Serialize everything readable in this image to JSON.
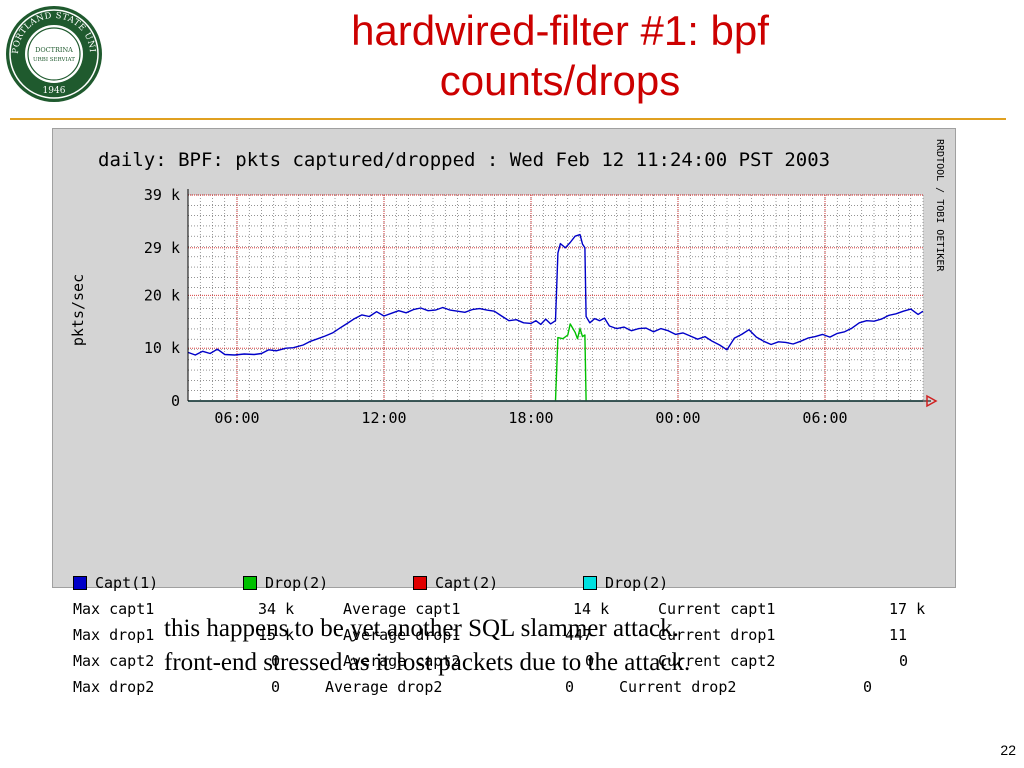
{
  "slide": {
    "title_line1": "hardwired-filter #1: bpf",
    "title_line2": "counts/drops",
    "caption_line1": "this happens to be yet another SQL slammer attack.",
    "caption_line2": "front-end stressed as it lost packets due to the attack.",
    "page_number": "22",
    "logo": {
      "top_text": "PORTLAND STATE UNIVERSITY",
      "inner_line1": "DOCTRINA",
      "inner_line2": "URBI SERVIAT",
      "year": "1946",
      "color": "#1f5a2e"
    }
  },
  "chart_data": {
    "type": "line",
    "title": "daily: BPF: pkts captured/dropped : Wed Feb 12 11:24:00 PST 2003",
    "ylabel": "pkts/sec",
    "watermark": "RRDTOOL / TOBI OETIKER",
    "ylim": [
      0,
      39000
    ],
    "xlim": [
      0,
      30
    ],
    "y_ticks": [
      {
        "value": 0,
        "label": "0"
      },
      {
        "value": 10000,
        "label": "10 k"
      },
      {
        "value": 20000,
        "label": "20 k"
      },
      {
        "value": 29000,
        "label": "29 k"
      },
      {
        "value": 39000,
        "label": "39 k"
      }
    ],
    "x_ticks": [
      {
        "value": 2,
        "label": "06:00"
      },
      {
        "value": 8,
        "label": "12:00"
      },
      {
        "value": 14,
        "label": "18:00"
      },
      {
        "value": 20,
        "label": "00:00"
      },
      {
        "value": 26,
        "label": "06:00"
      }
    ],
    "grid": true,
    "colors": {
      "background": "#ffffff",
      "frame": "#d4d4d4",
      "minor_grid": "#555555",
      "major_grid": "#d02020",
      "capt1": "#0000c8",
      "drop1": "#00c000",
      "capt2": "#e00000",
      "drop2": "#00e0e0",
      "arrow": "#d02020"
    },
    "series": [
      {
        "name": "Capt(1)",
        "color": "#0000c8",
        "points": [
          [
            0,
            9200
          ],
          [
            0.3,
            8700
          ],
          [
            0.6,
            9400
          ],
          [
            0.9,
            9000
          ],
          [
            1.2,
            9800
          ],
          [
            1.5,
            8800
          ],
          [
            1.9,
            8700
          ],
          [
            2.3,
            8900
          ],
          [
            2.7,
            8800
          ],
          [
            3.0,
            9000
          ],
          [
            3.3,
            9700
          ],
          [
            3.6,
            9500
          ],
          [
            4.0,
            10000
          ],
          [
            4.3,
            10100
          ],
          [
            4.7,
            10600
          ],
          [
            5.0,
            11300
          ],
          [
            5.3,
            11800
          ],
          [
            5.6,
            12300
          ],
          [
            5.9,
            12900
          ],
          [
            6.2,
            13800
          ],
          [
            6.5,
            14700
          ],
          [
            6.8,
            15600
          ],
          [
            7.1,
            16300
          ],
          [
            7.4,
            16000
          ],
          [
            7.7,
            16900
          ],
          [
            8.0,
            16100
          ],
          [
            8.3,
            16600
          ],
          [
            8.6,
            17100
          ],
          [
            8.9,
            16700
          ],
          [
            9.2,
            17300
          ],
          [
            9.5,
            17600
          ],
          [
            9.8,
            17100
          ],
          [
            10.1,
            17200
          ],
          [
            10.4,
            17700
          ],
          [
            10.7,
            17200
          ],
          [
            11.0,
            17000
          ],
          [
            11.3,
            16800
          ],
          [
            11.6,
            17300
          ],
          [
            11.9,
            17500
          ],
          [
            12.2,
            17200
          ],
          [
            12.5,
            17000
          ],
          [
            12.8,
            16100
          ],
          [
            13.1,
            15200
          ],
          [
            13.4,
            15400
          ],
          [
            13.7,
            14800
          ],
          [
            14.0,
            14700
          ],
          [
            14.2,
            15200
          ],
          [
            14.4,
            14500
          ],
          [
            14.6,
            15500
          ],
          [
            14.8,
            14600
          ],
          [
            15.0,
            15200
          ],
          [
            15.1,
            28000
          ],
          [
            15.2,
            29800
          ],
          [
            15.4,
            29000
          ],
          [
            15.6,
            30000
          ],
          [
            15.8,
            31200
          ],
          [
            16.0,
            31500
          ],
          [
            16.1,
            29700
          ],
          [
            16.2,
            29000
          ],
          [
            16.25,
            16000
          ],
          [
            16.4,
            14800
          ],
          [
            16.6,
            15600
          ],
          [
            16.8,
            15200
          ],
          [
            17.0,
            15700
          ],
          [
            17.2,
            14200
          ],
          [
            17.5,
            13700
          ],
          [
            17.8,
            14000
          ],
          [
            18.1,
            13300
          ],
          [
            18.4,
            13700
          ],
          [
            18.7,
            13800
          ],
          [
            19.0,
            13100
          ],
          [
            19.3,
            13700
          ],
          [
            19.6,
            13300
          ],
          [
            19.9,
            12600
          ],
          [
            20.2,
            12900
          ],
          [
            20.5,
            12300
          ],
          [
            20.8,
            11700
          ],
          [
            21.1,
            12200
          ],
          [
            21.4,
            11300
          ],
          [
            21.7,
            10600
          ],
          [
            22.0,
            9700
          ],
          [
            22.3,
            11900
          ],
          [
            22.6,
            12600
          ],
          [
            22.9,
            13500
          ],
          [
            23.2,
            12100
          ],
          [
            23.5,
            11300
          ],
          [
            23.8,
            10700
          ],
          [
            24.1,
            11200
          ],
          [
            24.4,
            11100
          ],
          [
            24.7,
            10800
          ],
          [
            25.0,
            11300
          ],
          [
            25.3,
            11900
          ],
          [
            25.6,
            12200
          ],
          [
            25.9,
            12600
          ],
          [
            26.2,
            12100
          ],
          [
            26.5,
            12800
          ],
          [
            26.8,
            13100
          ],
          [
            27.1,
            13800
          ],
          [
            27.4,
            14800
          ],
          [
            27.7,
            15200
          ],
          [
            28.0,
            15100
          ],
          [
            28.3,
            15500
          ],
          [
            28.6,
            16200
          ],
          [
            28.9,
            16500
          ],
          [
            29.2,
            17000
          ],
          [
            29.5,
            17400
          ],
          [
            29.8,
            16400
          ],
          [
            30,
            17000
          ]
        ]
      },
      {
        "name": "Drop(2)",
        "color": "#00c000",
        "points": [
          [
            15.0,
            0
          ],
          [
            15.1,
            12000
          ],
          [
            15.3,
            11800
          ],
          [
            15.5,
            12500
          ],
          [
            15.6,
            14600
          ],
          [
            15.8,
            13000
          ],
          [
            15.9,
            11800
          ],
          [
            16.0,
            13700
          ],
          [
            16.1,
            12200
          ],
          [
            16.2,
            12500
          ],
          [
            16.25,
            0
          ]
        ]
      },
      {
        "name": "Capt(2)",
        "color": "#e00000",
        "points": [
          [
            0,
            0
          ],
          [
            30,
            0
          ]
        ]
      },
      {
        "name": "Drop(2)",
        "color": "#00e0e0",
        "points": [
          [
            0,
            0
          ],
          [
            30,
            0
          ]
        ]
      }
    ],
    "legend": [
      {
        "name": "Capt(1)",
        "color": "#0000c8"
      },
      {
        "name": "Drop(2)",
        "color": "#00c000"
      },
      {
        "name": "Capt(2)",
        "color": "#e00000"
      },
      {
        "name": "Drop(2)",
        "color": "#00e0e0"
      }
    ],
    "stats": [
      [
        {
          "label": "Max capt1",
          "value": "34 k"
        },
        {
          "label": "Average capt1",
          "value": "14 k"
        },
        {
          "label": "Current capt1",
          "value": "17 k"
        }
      ],
      [
        {
          "label": "Max drop1",
          "value": "15 k"
        },
        {
          "label": "Average drop1",
          "value": "447"
        },
        {
          "label": "Current drop1",
          "value": "11"
        }
      ],
      [
        {
          "label": "Max capt2",
          "value": "0"
        },
        {
          "label": "Average capt2",
          "value": "0"
        },
        {
          "label": "Current capt2",
          "value": "0"
        }
      ],
      [
        {
          "label": "Max drop2",
          "value": "0"
        },
        {
          "label": "Average drop2",
          "value": "0"
        },
        {
          "label": "Current drop2",
          "value": "0"
        }
      ]
    ]
  }
}
